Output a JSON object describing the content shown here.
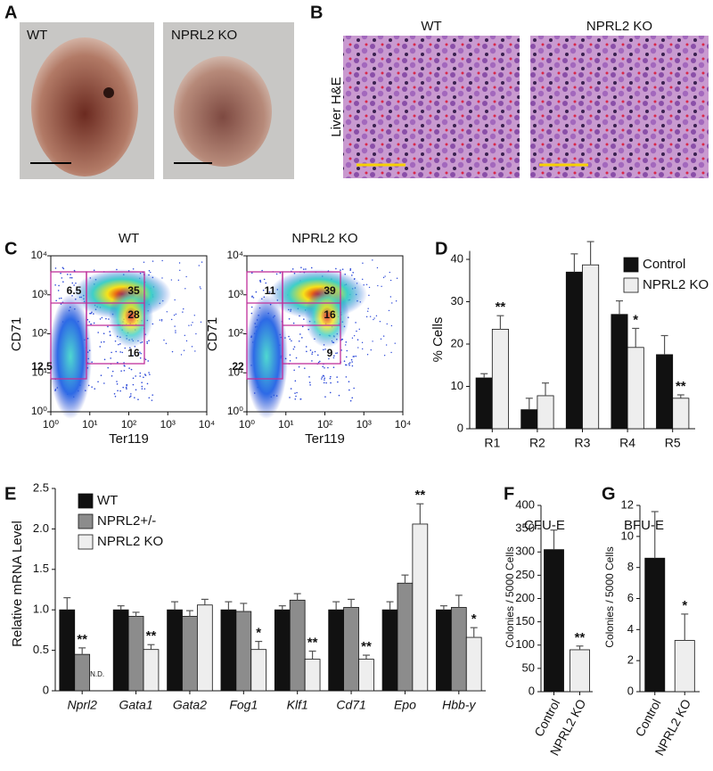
{
  "panel_labels": [
    "A",
    "B",
    "C",
    "D",
    "E",
    "F",
    "G"
  ],
  "panel_a": {
    "labels": [
      "WT",
      "NPRL2 KO"
    ]
  },
  "panel_b": {
    "side_label": "Liver H&E",
    "labels": [
      "WT",
      "NPRL2 KO"
    ]
  },
  "panel_c": {
    "xlabel": "Ter119",
    "ylabel": "CD71",
    "ticks": [
      "10⁰",
      "10¹",
      "10²",
      "10³",
      "10⁴"
    ],
    "plots": [
      {
        "title": "WT",
        "gates": [
          6.5,
          35,
          28,
          16,
          12.5
        ]
      },
      {
        "title": "NPRL2 KO",
        "gates": [
          11,
          39,
          16,
          9,
          22
        ]
      }
    ]
  },
  "chart_data": [
    {
      "type": "bar",
      "ylabel": "% Cells",
      "categories": [
        "R1",
        "R2",
        "R3",
        "R4",
        "R5"
      ],
      "series": [
        {
          "name": "Control",
          "color": "#111111",
          "values": [
            12,
            4.5,
            37,
            27,
            17.5
          ],
          "errors": [
            1,
            2.7,
            4.3,
            3.2,
            4.5
          ]
        },
        {
          "name": "NPRL2 KO",
          "color": "#eeeeee",
          "values": [
            23.5,
            7.8,
            38.7,
            19.2,
            7.2
          ],
          "errors": [
            3.2,
            3,
            5.5,
            4.5,
            0.8
          ],
          "annotations": [
            "**",
            null,
            null,
            "*",
            "**"
          ]
        }
      ],
      "ylim": [
        0,
        42
      ],
      "yticks": [
        0,
        10,
        20,
        30,
        40
      ],
      "legend": "upper right"
    },
    {
      "type": "bar",
      "ylabel": "Relative mRNA Level",
      "categories": [
        "Nprl2",
        "Gata1",
        "Gata2",
        "Fog1",
        "Klf1",
        "Cd71",
        "Epo",
        "Hbb-y"
      ],
      "series": [
        {
          "name": "WT",
          "color": "#111111",
          "values": [
            1,
            1,
            1,
            1,
            1,
            1,
            1,
            1
          ],
          "errors": [
            0.15,
            0.05,
            0.1,
            0.1,
            0.05,
            0.1,
            0.1,
            0.05
          ]
        },
        {
          "name": "NPRL2+/-",
          "color": "#8c8c8c",
          "values": [
            0.45,
            0.92,
            0.92,
            0.98,
            1.12,
            1.03,
            1.33,
            1.03
          ],
          "errors": [
            0.08,
            0.05,
            0.07,
            0.1,
            0.08,
            0.1,
            0.1,
            0.15
          ],
          "annotations": [
            "**",
            null,
            null,
            null,
            null,
            null,
            null,
            null
          ]
        },
        {
          "name": "NPRL2 KO",
          "color": "#eeeeee",
          "values": [
            null,
            0.51,
            1.06,
            0.51,
            0.39,
            0.39,
            2.06,
            0.66
          ],
          "errors": [
            null,
            0.06,
            0.07,
            0.1,
            0.1,
            0.05,
            0.25,
            0.12
          ],
          "annotations": [
            "N.D.",
            "**",
            null,
            "*",
            "**",
            "**",
            "**",
            "*"
          ]
        }
      ],
      "ylim": [
        0,
        2.5
      ],
      "yticks": [
        0,
        0.5,
        {
          "value": 1,
          "label": "1.0"
        },
        1.5,
        {
          "value": 2,
          "label": "2.0"
        },
        2.5
      ],
      "legend": "upper left"
    },
    {
      "type": "bar",
      "title": "CFU-E",
      "ylabel": "Colonies / 5000 Cells",
      "categories": [
        "Control",
        "NPRL2 KO"
      ],
      "series": [
        {
          "colors": [
            "#111111",
            "#eeeeee"
          ],
          "values": [
            305,
            90
          ],
          "errors": [
            42,
            8
          ],
          "annotations": [
            null,
            "**"
          ]
        }
      ],
      "ylim": [
        0,
        400
      ],
      "yticks": [
        0,
        50,
        100,
        150,
        200,
        250,
        300,
        350,
        400
      ]
    },
    {
      "type": "bar",
      "title": "BFU-E",
      "ylabel": "Colonies / 5000 Cells",
      "categories": [
        "Control",
        "NPRL2 KO"
      ],
      "series": [
        {
          "colors": [
            "#111111",
            "#eeeeee"
          ],
          "values": [
            8.6,
            3.3
          ],
          "errors": [
            3,
            1.7
          ],
          "annotations": [
            null,
            "*"
          ]
        }
      ],
      "ylim": [
        0,
        12
      ],
      "yticks": [
        0,
        2,
        4,
        6,
        8,
        10,
        12
      ]
    }
  ]
}
